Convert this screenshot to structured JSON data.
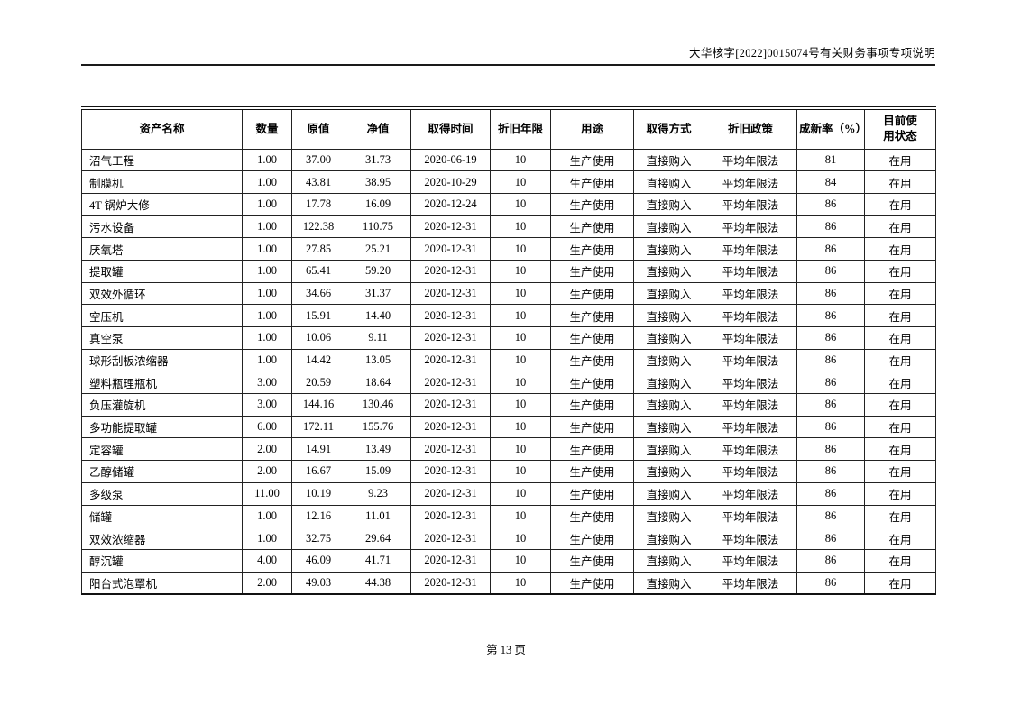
{
  "header": {
    "doc_ref": "大华核字[2022]0015074号有关财务事项专项说明"
  },
  "table": {
    "columns": [
      "资产名称",
      "数量",
      "原值",
      "净值",
      "取得时间",
      "折旧年限",
      "用途",
      "取得方式",
      "折旧政策",
      "成新率（%）",
      "目前使\n用状态"
    ],
    "rows": [
      [
        "沼气工程",
        "1.00",
        "37.00",
        "31.73",
        "2020-06-19",
        "10",
        "生产使用",
        "直接购入",
        "平均年限法",
        "81",
        "在用"
      ],
      [
        "制膜机",
        "1.00",
        "43.81",
        "38.95",
        "2020-10-29",
        "10",
        "生产使用",
        "直接购入",
        "平均年限法",
        "84",
        "在用"
      ],
      [
        "4T 锅炉大修",
        "1.00",
        "17.78",
        "16.09",
        "2020-12-24",
        "10",
        "生产使用",
        "直接购入",
        "平均年限法",
        "86",
        "在用"
      ],
      [
        "污水设备",
        "1.00",
        "122.38",
        "110.75",
        "2020-12-31",
        "10",
        "生产使用",
        "直接购入",
        "平均年限法",
        "86",
        "在用"
      ],
      [
        "厌氧塔",
        "1.00",
        "27.85",
        "25.21",
        "2020-12-31",
        "10",
        "生产使用",
        "直接购入",
        "平均年限法",
        "86",
        "在用"
      ],
      [
        "提取罐",
        "1.00",
        "65.41",
        "59.20",
        "2020-12-31",
        "10",
        "生产使用",
        "直接购入",
        "平均年限法",
        "86",
        "在用"
      ],
      [
        "双效外循环",
        "1.00",
        "34.66",
        "31.37",
        "2020-12-31",
        "10",
        "生产使用",
        "直接购入",
        "平均年限法",
        "86",
        "在用"
      ],
      [
        "空压机",
        "1.00",
        "15.91",
        "14.40",
        "2020-12-31",
        "10",
        "生产使用",
        "直接购入",
        "平均年限法",
        "86",
        "在用"
      ],
      [
        "真空泵",
        "1.00",
        "10.06",
        "9.11",
        "2020-12-31",
        "10",
        "生产使用",
        "直接购入",
        "平均年限法",
        "86",
        "在用"
      ],
      [
        "球形刮板浓缩器",
        "1.00",
        "14.42",
        "13.05",
        "2020-12-31",
        "10",
        "生产使用",
        "直接购入",
        "平均年限法",
        "86",
        "在用"
      ],
      [
        "塑料瓶理瓶机",
        "3.00",
        "20.59",
        "18.64",
        "2020-12-31",
        "10",
        "生产使用",
        "直接购入",
        "平均年限法",
        "86",
        "在用"
      ],
      [
        "负压灌旋机",
        "3.00",
        "144.16",
        "130.46",
        "2020-12-31",
        "10",
        "生产使用",
        "直接购入",
        "平均年限法",
        "86",
        "在用"
      ],
      [
        "多功能提取罐",
        "6.00",
        "172.11",
        "155.76",
        "2020-12-31",
        "10",
        "生产使用",
        "直接购入",
        "平均年限法",
        "86",
        "在用"
      ],
      [
        "定容罐",
        "2.00",
        "14.91",
        "13.49",
        "2020-12-31",
        "10",
        "生产使用",
        "直接购入",
        "平均年限法",
        "86",
        "在用"
      ],
      [
        "乙醇储罐",
        "2.00",
        "16.67",
        "15.09",
        "2020-12-31",
        "10",
        "生产使用",
        "直接购入",
        "平均年限法",
        "86",
        "在用"
      ],
      [
        "多级泵",
        "11.00",
        "10.19",
        "9.23",
        "2020-12-31",
        "10",
        "生产使用",
        "直接购入",
        "平均年限法",
        "86",
        "在用"
      ],
      [
        "储罐",
        "1.00",
        "12.16",
        "11.01",
        "2020-12-31",
        "10",
        "生产使用",
        "直接购入",
        "平均年限法",
        "86",
        "在用"
      ],
      [
        "双效浓缩器",
        "1.00",
        "32.75",
        "29.64",
        "2020-12-31",
        "10",
        "生产使用",
        "直接购入",
        "平均年限法",
        "86",
        "在用"
      ],
      [
        "醇沉罐",
        "4.00",
        "46.09",
        "41.71",
        "2020-12-31",
        "10",
        "生产使用",
        "直接购入",
        "平均年限法",
        "86",
        "在用"
      ],
      [
        "阳台式泡罩机",
        "2.00",
        "49.03",
        "44.38",
        "2020-12-31",
        "10",
        "生产使用",
        "直接购入",
        "平均年限法",
        "86",
        "在用"
      ]
    ]
  },
  "footer": {
    "page_label": "第 13 页"
  }
}
